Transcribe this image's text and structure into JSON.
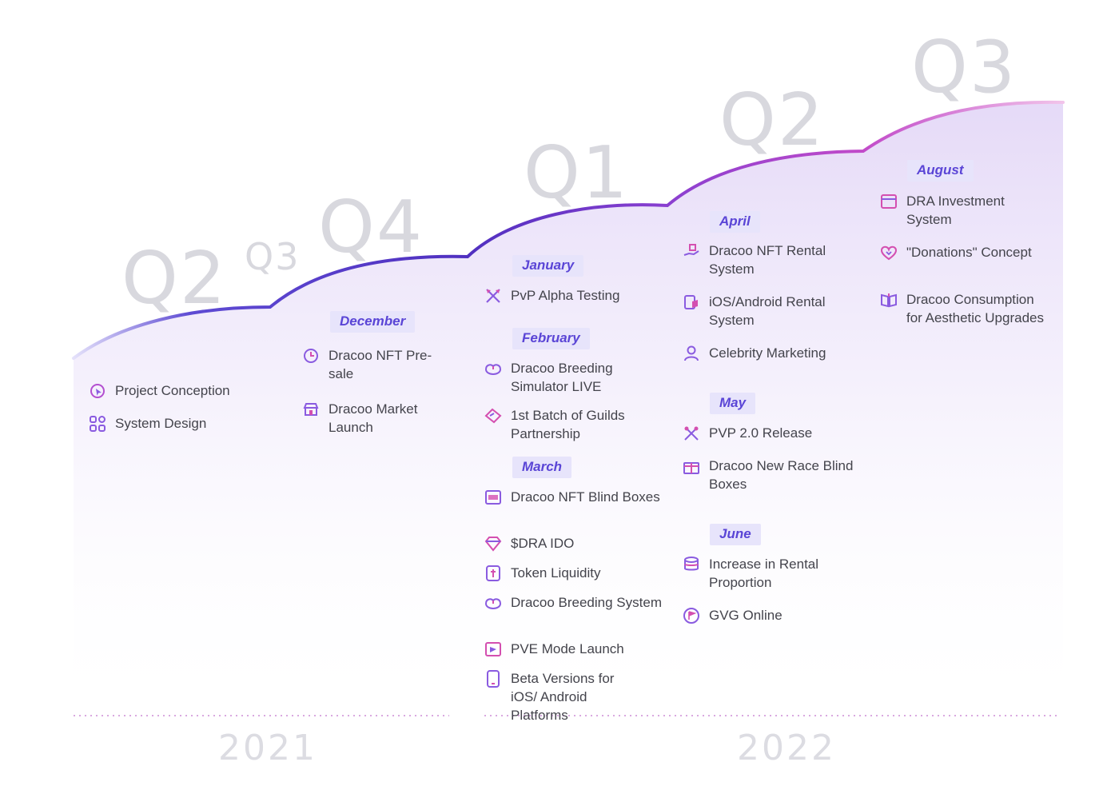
{
  "quarters": {
    "q2_2021": "Q2",
    "q3_2021": "Q3",
    "q4_2021": "Q4",
    "q1_2022": "Q1",
    "q2_2022": "Q2",
    "q3_2022": "Q3"
  },
  "years": {
    "y2021": "2021",
    "y2022": "2022"
  },
  "q2_2021": {
    "items": [
      {
        "icon": "project-conception-icon",
        "label": "Project Conception"
      },
      {
        "icon": "system-design-icon",
        "label": "System Design"
      }
    ]
  },
  "q4_2021": {
    "month": "December",
    "items": [
      {
        "icon": "clock-icon",
        "label": "Dracoo NFT Pre-sale"
      },
      {
        "icon": "market-icon",
        "label": "Dracoo Market Launch"
      }
    ]
  },
  "q1_2022": {
    "january": {
      "month": "January",
      "items": [
        {
          "icon": "swords-icon",
          "label": "PvP Alpha Testing"
        }
      ]
    },
    "february": {
      "month": "February",
      "items": [
        {
          "icon": "egg-icon",
          "label": "Dracoo Breeding Simulator LIVE"
        },
        {
          "icon": "handshake-icon",
          "label": "1st Batch of Guilds Partnership"
        }
      ]
    },
    "march": {
      "month": "March",
      "items": [
        {
          "icon": "nft-box-icon",
          "label": "Dracoo NFT Blind Boxes"
        },
        {
          "icon": "diamond-icon",
          "label": "$DRA IDO"
        },
        {
          "icon": "token-icon",
          "label": "Token Liquidity"
        },
        {
          "icon": "egg-icon",
          "label": "Dracoo Breeding System"
        },
        {
          "icon": "pve-icon",
          "label": "PVE Mode Launch"
        },
        {
          "icon": "mobile-icon",
          "label": "Beta Versions for iOS/ Android Platforms"
        }
      ]
    }
  },
  "q2_2022": {
    "april": {
      "month": "April",
      "items": [
        {
          "icon": "rental-hand-icon",
          "label": "Dracoo NFT Rental System"
        },
        {
          "icon": "app-rental-icon",
          "label": "iOS/Android Rental System"
        },
        {
          "icon": "person-icon",
          "label": "Celebrity Marketing"
        }
      ]
    },
    "may": {
      "month": "May",
      "items": [
        {
          "icon": "pvp-icon",
          "label": "PVP 2.0 Release"
        },
        {
          "icon": "gift-icon",
          "label": "Dracoo New Race Blind Boxes"
        }
      ]
    },
    "june": {
      "month": "June",
      "items": [
        {
          "icon": "coins-icon",
          "label": "Increase in Rental Proportion"
        },
        {
          "icon": "flag-icon",
          "label": "GVG Online"
        }
      ]
    }
  },
  "q3_2022": {
    "month": "August",
    "items": [
      {
        "icon": "wallet-icon",
        "label": "DRA Investment System"
      },
      {
        "icon": "heart-icon",
        "label": "\"Donations\" Concept"
      },
      {
        "icon": "book-icon",
        "label": "Dracoo Consumption for Aesthetic Upgrades"
      }
    ]
  },
  "colors": {
    "curve_start": "#6b5cd6",
    "curve_mid": "#5b3fc9",
    "curve_end": "#d64fc4",
    "month_bg": "#e7e4fb",
    "month_text": "#5a45d6",
    "icon_purple": "#8a5be0",
    "icon_pink": "#d44fb0"
  }
}
